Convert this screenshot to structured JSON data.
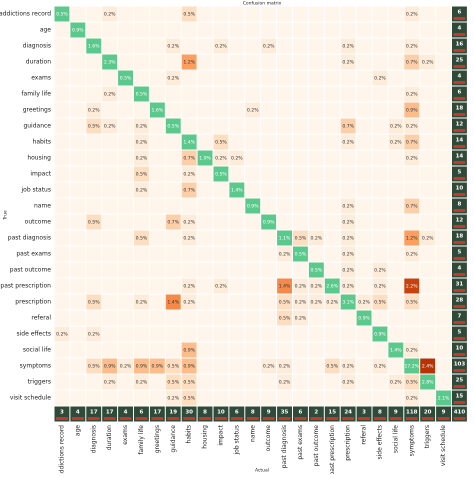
{
  "chart_data": {
    "type": "heatmap",
    "title": "Confusion matrix",
    "ylabel": "True",
    "xlabel": "Actual",
    "categories": [
      "addictions record",
      "age",
      "diagnosis",
      "duration",
      "exams",
      "family life",
      "greetings",
      "guidance",
      "habits",
      "housing",
      "impact",
      "job status",
      "name",
      "outcome",
      "past diagnosis",
      "past exams",
      "past outcome",
      "past prescription",
      "prescription",
      "referal",
      "side effects",
      "social life",
      "symptoms",
      "triggers",
      "visit schedule"
    ],
    "diagonal_color": "#5cc98c",
    "colormap": [
      "#fff5eb",
      "#fdd9b8",
      "#fb9e5e",
      "#e8611c",
      "#b83206"
    ],
    "total_color": "#2f4a38",
    "values": [
      [
        0.5,
        null,
        null,
        0.2,
        null,
        null,
        null,
        null,
        0.5,
        null,
        null,
        null,
        null,
        null,
        null,
        null,
        null,
        null,
        null,
        null,
        null,
        null,
        0.2,
        null,
        null
      ],
      [
        null,
        0.9,
        null,
        null,
        null,
        null,
        null,
        null,
        null,
        null,
        null,
        null,
        null,
        null,
        null,
        null,
        null,
        null,
        null,
        null,
        null,
        null,
        null,
        null,
        null
      ],
      [
        null,
        null,
        1.6,
        null,
        null,
        null,
        null,
        0.2,
        null,
        null,
        0.2,
        null,
        null,
        0.2,
        null,
        null,
        null,
        null,
        0.2,
        null,
        null,
        null,
        0.2,
        null,
        null
      ],
      [
        null,
        null,
        null,
        2.3,
        null,
        null,
        null,
        null,
        1.2,
        null,
        null,
        null,
        null,
        null,
        null,
        null,
        null,
        null,
        0.2,
        null,
        null,
        null,
        0.7,
        0.2,
        null
      ],
      [
        null,
        null,
        null,
        null,
        0.5,
        null,
        null,
        0.2,
        null,
        null,
        null,
        null,
        null,
        null,
        null,
        null,
        null,
        null,
        null,
        null,
        0.2,
        null,
        null,
        null,
        null
      ],
      [
        null,
        null,
        null,
        0.2,
        null,
        0.5,
        null,
        null,
        null,
        null,
        null,
        null,
        null,
        null,
        null,
        null,
        null,
        null,
        null,
        null,
        null,
        null,
        0.2,
        null,
        null
      ],
      [
        null,
        null,
        0.2,
        null,
        null,
        null,
        1.6,
        null,
        null,
        null,
        null,
        null,
        0.2,
        null,
        null,
        null,
        null,
        null,
        null,
        null,
        null,
        null,
        0.9,
        null,
        null
      ],
      [
        null,
        null,
        0.5,
        0.2,
        null,
        0.2,
        null,
        0.5,
        null,
        null,
        null,
        null,
        null,
        null,
        null,
        null,
        null,
        null,
        0.7,
        null,
        null,
        0.2,
        0.2,
        null,
        null
      ],
      [
        null,
        null,
        null,
        null,
        null,
        0.2,
        null,
        null,
        1.4,
        null,
        0.5,
        null,
        null,
        null,
        null,
        null,
        null,
        null,
        0.2,
        null,
        null,
        0.2,
        0.7,
        null,
        null
      ],
      [
        null,
        null,
        null,
        null,
        null,
        0.2,
        null,
        null,
        0.7,
        1.9,
        0.2,
        0.2,
        null,
        null,
        null,
        null,
        null,
        null,
        null,
        null,
        null,
        null,
        0.2,
        null,
        null
      ],
      [
        null,
        null,
        null,
        null,
        null,
        0.5,
        null,
        null,
        0.2,
        null,
        0.5,
        null,
        null,
        null,
        null,
        null,
        null,
        null,
        null,
        null,
        null,
        null,
        null,
        null,
        null
      ],
      [
        null,
        null,
        null,
        null,
        null,
        0.2,
        null,
        null,
        0.7,
        null,
        null,
        1.4,
        null,
        null,
        null,
        null,
        null,
        null,
        null,
        null,
        null,
        null,
        null,
        null,
        null
      ],
      [
        null,
        null,
        null,
        null,
        null,
        null,
        null,
        null,
        null,
        null,
        null,
        null,
        0.9,
        null,
        null,
        null,
        null,
        null,
        0.2,
        null,
        null,
        null,
        0.7,
        null,
        null
      ],
      [
        null,
        null,
        0.5,
        null,
        null,
        null,
        null,
        0.7,
        0.2,
        null,
        null,
        null,
        null,
        0.9,
        null,
        null,
        null,
        null,
        0.2,
        null,
        null,
        null,
        null,
        null,
        null
      ],
      [
        null,
        null,
        null,
        null,
        null,
        0.5,
        null,
        null,
        0.2,
        null,
        null,
        null,
        null,
        null,
        1.1,
        0.5,
        0.2,
        null,
        0.2,
        null,
        null,
        null,
        1.2,
        0.2,
        null
      ],
      [
        null,
        null,
        null,
        null,
        null,
        null,
        null,
        null,
        null,
        null,
        null,
        null,
        null,
        null,
        0.2,
        0.5,
        null,
        null,
        0.2,
        null,
        null,
        null,
        0.2,
        null,
        null
      ],
      [
        null,
        null,
        null,
        null,
        null,
        null,
        null,
        null,
        null,
        null,
        null,
        null,
        null,
        null,
        null,
        null,
        0.5,
        null,
        0.2,
        null,
        0.2,
        null,
        null,
        null,
        null
      ],
      [
        null,
        null,
        null,
        null,
        null,
        null,
        null,
        null,
        0.2,
        null,
        0.2,
        null,
        null,
        null,
        1.4,
        0.2,
        0.2,
        2.6,
        0.2,
        null,
        0.2,
        null,
        2.2,
        null,
        null
      ],
      [
        null,
        null,
        0.5,
        null,
        null,
        0.2,
        null,
        1.4,
        0.2,
        null,
        null,
        null,
        null,
        null,
        0.5,
        0.2,
        0.2,
        0.2,
        3.1,
        0.2,
        0.5,
        null,
        0.5,
        null,
        null
      ],
      [
        null,
        null,
        null,
        null,
        null,
        null,
        null,
        null,
        null,
        null,
        null,
        null,
        null,
        null,
        0.5,
        0.2,
        null,
        null,
        null,
        0.9,
        null,
        null,
        null,
        null,
        null
      ],
      [
        0.2,
        null,
        0.2,
        null,
        null,
        null,
        null,
        null,
        null,
        null,
        null,
        null,
        null,
        null,
        null,
        null,
        null,
        null,
        null,
        null,
        0.9,
        null,
        null,
        null,
        null
      ],
      [
        null,
        null,
        null,
        null,
        null,
        null,
        null,
        null,
        0.9,
        null,
        null,
        null,
        null,
        null,
        null,
        null,
        null,
        null,
        null,
        null,
        null,
        1.4,
        0.2,
        null,
        null
      ],
      [
        null,
        null,
        0.5,
        0.9,
        0.2,
        0.9,
        0.9,
        0.5,
        0.9,
        null,
        null,
        null,
        null,
        0.2,
        0.2,
        null,
        null,
        0.5,
        0.2,
        null,
        0.2,
        null,
        17.2,
        2.4,
        null
      ],
      [
        null,
        null,
        null,
        0.2,
        null,
        0.2,
        null,
        0.5,
        0.5,
        null,
        null,
        null,
        null,
        null,
        0.2,
        null,
        null,
        null,
        0.2,
        null,
        null,
        0.2,
        0.5,
        2.8,
        null
      ],
      [
        null,
        null,
        null,
        null,
        null,
        null,
        null,
        0.2,
        0.5,
        null,
        null,
        null,
        null,
        null,
        null,
        null,
        null,
        null,
        null,
        null,
        null,
        null,
        0.2,
        null,
        2.1
      ]
    ],
    "value_labels": [
      [
        "0.5%",
        null,
        null,
        "0.2%",
        null,
        null,
        null,
        null,
        "0.5%",
        null,
        null,
        null,
        null,
        null,
        null,
        null,
        null,
        null,
        null,
        null,
        null,
        null,
        "0.2%",
        null,
        null
      ],
      [
        null,
        "0.9%",
        null,
        null,
        null,
        null,
        null,
        null,
        null,
        null,
        null,
        null,
        null,
        null,
        null,
        null,
        null,
        null,
        null,
        null,
        null,
        null,
        null,
        null,
        null
      ],
      [
        null,
        null,
        "1.6%",
        null,
        null,
        null,
        null,
        "0.2%",
        null,
        null,
        "0.2%",
        null,
        null,
        "0.2%",
        null,
        null,
        null,
        null,
        "0.2%",
        null,
        null,
        null,
        "0.2%",
        null,
        null
      ],
      [
        null,
        null,
        null,
        "2.3%",
        null,
        null,
        null,
        null,
        "1.2%",
        null,
        null,
        null,
        null,
        null,
        null,
        null,
        null,
        null,
        "0.2%",
        null,
        null,
        null,
        "0.7%",
        "0.2%",
        null
      ],
      [
        null,
        null,
        null,
        null,
        "0.5%",
        null,
        null,
        "0.2%",
        null,
        null,
        null,
        null,
        null,
        null,
        null,
        null,
        null,
        null,
        null,
        null,
        "0.2%",
        null,
        null,
        null,
        null
      ],
      [
        null,
        null,
        null,
        "0.2%",
        null,
        "0.5%",
        null,
        null,
        null,
        null,
        null,
        null,
        null,
        null,
        null,
        null,
        null,
        null,
        null,
        null,
        null,
        null,
        "0.2%",
        null,
        null
      ],
      [
        null,
        null,
        "0.2%",
        null,
        null,
        null,
        "1.6%",
        null,
        null,
        null,
        null,
        null,
        "0.2%",
        null,
        null,
        null,
        null,
        null,
        null,
        null,
        null,
        null,
        "0.9%",
        null,
        null
      ],
      [
        null,
        null,
        "0.5%",
        "0.2%",
        null,
        "0.2%",
        null,
        "0.5%",
        null,
        null,
        null,
        null,
        null,
        null,
        null,
        null,
        null,
        null,
        "0.7%",
        null,
        null,
        "0.2%",
        "0.2%",
        null,
        null
      ],
      [
        null,
        null,
        null,
        null,
        null,
        "0.2%",
        null,
        null,
        "1.4%",
        null,
        "0.5%",
        null,
        null,
        null,
        null,
        null,
        null,
        null,
        "0.2%",
        null,
        null,
        "0.2%",
        "0.7%",
        null,
        null
      ],
      [
        null,
        null,
        null,
        null,
        null,
        "0.2%",
        null,
        null,
        "0.7%",
        "1.9%",
        "0.2%",
        "0.2%",
        null,
        null,
        null,
        null,
        null,
        null,
        null,
        null,
        null,
        null,
        "0.2%",
        null,
        null
      ],
      [
        null,
        null,
        null,
        null,
        null,
        "0.5%",
        null,
        null,
        "0.2%",
        null,
        "0.5%",
        null,
        null,
        null,
        null,
        null,
        null,
        null,
        null,
        null,
        null,
        null,
        null,
        null,
        null
      ],
      [
        null,
        null,
        null,
        null,
        null,
        "0.2%",
        null,
        null,
        "0.7%",
        null,
        null,
        "1.4%",
        null,
        null,
        null,
        null,
        null,
        null,
        null,
        null,
        null,
        null,
        null,
        null,
        null
      ],
      [
        null,
        null,
        null,
        null,
        null,
        null,
        null,
        null,
        null,
        null,
        null,
        null,
        "0.9%",
        null,
        null,
        null,
        null,
        null,
        "0.2%",
        null,
        null,
        null,
        "0.7%",
        null,
        null
      ],
      [
        null,
        null,
        "0.5%",
        null,
        null,
        null,
        null,
        "0.7%",
        "0.2%",
        null,
        null,
        null,
        null,
        "0.9%",
        null,
        null,
        null,
        null,
        "0.2%",
        null,
        null,
        null,
        null,
        null,
        null
      ],
      [
        null,
        null,
        null,
        null,
        null,
        "0.5%",
        null,
        null,
        "0.2%",
        null,
        null,
        null,
        null,
        null,
        "1.1%",
        "0.5%",
        "0.2%",
        null,
        "0.2%",
        null,
        null,
        null,
        "1.2%",
        "0.2%",
        null
      ],
      [
        null,
        null,
        null,
        null,
        null,
        null,
        null,
        null,
        null,
        null,
        null,
        null,
        null,
        null,
        "0.2%",
        "0.5%",
        null,
        null,
        "0.2%",
        null,
        null,
        null,
        "0.2%",
        null,
        null
      ],
      [
        null,
        null,
        null,
        null,
        null,
        null,
        null,
        null,
        null,
        null,
        null,
        null,
        null,
        null,
        null,
        null,
        "0.5%",
        null,
        "0.2%",
        null,
        "0.2%",
        null,
        null,
        null,
        null
      ],
      [
        null,
        null,
        null,
        null,
        null,
        null,
        null,
        null,
        "0.2%",
        null,
        "0.2%",
        null,
        null,
        null,
        "1.4%",
        "0.2%",
        "0.2%",
        "2.6%",
        "0.2%",
        null,
        "0.2%",
        null,
        "2.2%",
        null,
        null
      ],
      [
        null,
        null,
        "0.5%",
        null,
        null,
        "0.2%",
        null,
        "1.4%",
        "0.2%",
        null,
        null,
        null,
        null,
        null,
        "0.5%",
        "0.2%",
        "0.2%",
        "0.2%",
        "3.1%",
        "0.2%",
        "0.5%",
        null,
        "0.5%",
        null,
        null
      ],
      [
        null,
        null,
        null,
        null,
        null,
        null,
        null,
        null,
        null,
        null,
        null,
        null,
        null,
        null,
        "0.5%",
        "0.2%",
        null,
        null,
        null,
        "0.9%",
        null,
        null,
        null,
        null,
        null
      ],
      [
        "0.2%",
        null,
        "0.2%",
        null,
        null,
        null,
        null,
        null,
        null,
        null,
        null,
        null,
        null,
        null,
        null,
        null,
        null,
        null,
        null,
        null,
        "0.9%",
        null,
        null,
        null,
        null
      ],
      [
        null,
        null,
        null,
        null,
        null,
        null,
        null,
        null,
        "0.9%",
        null,
        null,
        null,
        null,
        null,
        null,
        null,
        null,
        null,
        null,
        null,
        null,
        "1.4%",
        "0.2%",
        null,
        null
      ],
      [
        null,
        null,
        "0.5%",
        "0.9%",
        "0.2%",
        "0.9%",
        "0.9%",
        "0.5%",
        "0.9%",
        null,
        null,
        null,
        null,
        "0.2%",
        "0.2%",
        null,
        null,
        "0.5%",
        "0.2%",
        null,
        "0.2%",
        null,
        "17.2%",
        "2.4%",
        null
      ],
      [
        null,
        null,
        null,
        "0.2%",
        null,
        "0.2%",
        null,
        "0.5%",
        "0.5%",
        null,
        null,
        null,
        null,
        null,
        "0.2%",
        null,
        null,
        null,
        "0.2%",
        null,
        null,
        "0.2%",
        "0.5%",
        "2.8%",
        null
      ],
      [
        null,
        null,
        null,
        null,
        null,
        null,
        null,
        "0.2%",
        "0.5%",
        null,
        null,
        null,
        null,
        null,
        null,
        null,
        null,
        null,
        null,
        null,
        null,
        null,
        "0.2%",
        null,
        "2.1%"
      ]
    ],
    "row_totals": [
      6,
      4,
      16,
      25,
      4,
      6,
      18,
      12,
      14,
      14,
      5,
      10,
      8,
      12,
      18,
      5,
      4,
      31,
      28,
      7,
      5,
      10,
      103,
      25,
      15
    ],
    "column_totals": [
      3,
      4,
      17,
      17,
      4,
      6,
      17,
      19,
      30,
      8,
      10,
      6,
      8,
      9,
      35,
      6,
      2,
      15,
      24,
      3,
      8,
      9,
      118,
      20,
      9
    ],
    "grand_total": 410
  }
}
